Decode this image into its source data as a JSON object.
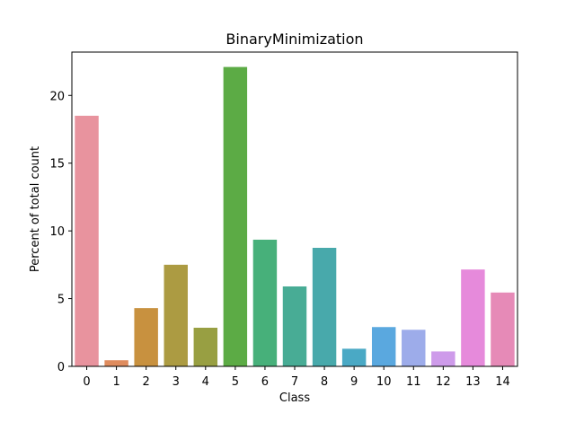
{
  "chart_data": {
    "type": "bar",
    "title": "BinaryMinimization",
    "xlabel": "Class",
    "ylabel": "Percent of total count",
    "categories": [
      "0",
      "1",
      "2",
      "3",
      "4",
      "5",
      "6",
      "7",
      "8",
      "9",
      "10",
      "11",
      "12",
      "13",
      "14"
    ],
    "values": [
      18.5,
      0.45,
      4.3,
      7.5,
      2.85,
      22.1,
      9.35,
      5.9,
      8.75,
      1.3,
      2.9,
      2.7,
      1.1,
      7.15,
      5.45
    ],
    "colors": [
      "#e8939e",
      "#df8c5e",
      "#c8913f",
      "#ac9b42",
      "#989f42",
      "#5cab45",
      "#47b07a",
      "#48ac95",
      "#48a9ab",
      "#4aa9c5",
      "#5aa8df",
      "#9dacea",
      "#ce9bea",
      "#e68adb",
      "#e68ab7"
    ],
    "yticks": [
      0,
      5,
      10,
      15,
      20
    ],
    "ylim": [
      0,
      23.2
    ],
    "grid": false,
    "legend": "none"
  }
}
